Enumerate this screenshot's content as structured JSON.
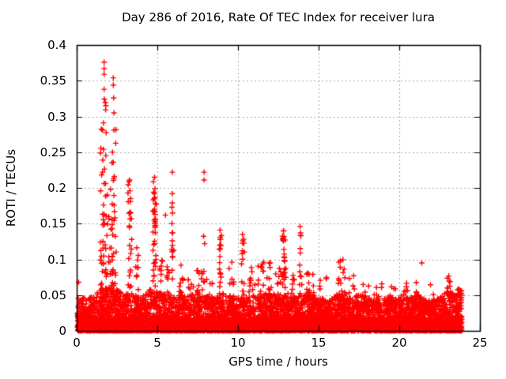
{
  "page": {
    "background": "#ffffff"
  },
  "chart_data": {
    "type": "scatter",
    "title": "Day 286 of 2016, Rate Of TEC Index for receiver lura",
    "xlabel": "GPS time / hours",
    "ylabel": "ROTI / TECUs",
    "xlim": [
      0,
      25
    ],
    "ylim": [
      0,
      0.4
    ],
    "xticks": [
      {
        "value": 0,
        "label": "0"
      },
      {
        "value": 5,
        "label": "5"
      },
      {
        "value": 10,
        "label": "10"
      },
      {
        "value": 15,
        "label": "15"
      },
      {
        "value": 20,
        "label": "20"
      },
      {
        "value": 25,
        "label": "25"
      }
    ],
    "yticks": [
      {
        "value": 0,
        "label": "0"
      },
      {
        "value": 0.05,
        "label": "0.05"
      },
      {
        "value": 0.1,
        "label": "0.1"
      },
      {
        "value": 0.15,
        "label": "0.15"
      },
      {
        "value": 0.2,
        "label": "0.2"
      },
      {
        "value": 0.25,
        "label": "0.25"
      },
      {
        "value": 0.3,
        "label": "0.3"
      },
      {
        "value": 0.35,
        "label": "0.35"
      },
      {
        "value": 0.4,
        "label": "0.4"
      }
    ],
    "grid": {
      "show": true,
      "color": "#a8a8a8",
      "dash": [
        2,
        3
      ]
    },
    "axis_color": "#000000",
    "text_color": "#000000",
    "legend": null,
    "marker": {
      "shape": "plus",
      "color": "#ff0000",
      "size": 7,
      "stroke_width": 1.4
    },
    "data_span_hours": [
      0.05,
      23.88
    ],
    "baseline_band": {
      "count": 5200,
      "strip_count": 2600,
      "strip_max": 0.018,
      "shape_power": 2.0,
      "envelope": [
        [
          0,
          0.045
        ],
        [
          0.5,
          0.052
        ],
        [
          1,
          0.05
        ],
        [
          1.5,
          0.06
        ],
        [
          2,
          0.062
        ],
        [
          2.5,
          0.058
        ],
        [
          3,
          0.06
        ],
        [
          3.5,
          0.05
        ],
        [
          4,
          0.048
        ],
        [
          4.5,
          0.058
        ],
        [
          5,
          0.055
        ],
        [
          5.5,
          0.052
        ],
        [
          6,
          0.05
        ],
        [
          6.5,
          0.056
        ],
        [
          7,
          0.046
        ],
        [
          7.5,
          0.054
        ],
        [
          8,
          0.05
        ],
        [
          8.5,
          0.047
        ],
        [
          9,
          0.055
        ],
        [
          9.5,
          0.045
        ],
        [
          10,
          0.05
        ],
        [
          10.5,
          0.046
        ],
        [
          11,
          0.05
        ],
        [
          11.5,
          0.05
        ],
        [
          12,
          0.055
        ],
        [
          12.5,
          0.05
        ],
        [
          13,
          0.056
        ],
        [
          13.5,
          0.046
        ],
        [
          14,
          0.05
        ],
        [
          14.5,
          0.056
        ],
        [
          15,
          0.046
        ],
        [
          15.5,
          0.042
        ],
        [
          16,
          0.05
        ],
        [
          16.5,
          0.055
        ],
        [
          17,
          0.046
        ],
        [
          17.5,
          0.05
        ],
        [
          18,
          0.05
        ],
        [
          18.5,
          0.046
        ],
        [
          19,
          0.05
        ],
        [
          19.5,
          0.046
        ],
        [
          20,
          0.05
        ],
        [
          20.5,
          0.046
        ],
        [
          21,
          0.05
        ],
        [
          21.5,
          0.046
        ],
        [
          22,
          0.042
        ],
        [
          22.5,
          0.046
        ],
        [
          23,
          0.06
        ],
        [
          23.5,
          0.05
        ],
        [
          23.88,
          0.058
        ]
      ]
    },
    "spike_clusters": [
      {
        "x": 1.65,
        "halfwidth": 0.18,
        "ymax": 0.34,
        "count": 38
      },
      {
        "x": 2.3,
        "halfwidth": 0.15,
        "ymax": 0.3,
        "count": 26
      },
      {
        "x": 1.95,
        "halfwidth": 0.4,
        "ymax": 0.17,
        "count": 40
      },
      {
        "x": 3.3,
        "halfwidth": 0.12,
        "ymax": 0.21,
        "count": 26
      },
      {
        "x": 3.75,
        "halfwidth": 0.1,
        "ymax": 0.12,
        "count": 12
      },
      {
        "x": 4.85,
        "halfwidth": 0.12,
        "ymax": 0.21,
        "count": 42
      },
      {
        "x": 5.25,
        "halfwidth": 0.12,
        "ymax": 0.1,
        "count": 12
      },
      {
        "x": 5.65,
        "halfwidth": 0.1,
        "ymax": 0.095,
        "count": 12
      },
      {
        "x": 5.95,
        "halfwidth": 0.07,
        "ymax": 0.19,
        "count": 14
      },
      {
        "x": 6.45,
        "halfwidth": 0.15,
        "ymax": 0.1,
        "count": 16
      },
      {
        "x": 7.05,
        "halfwidth": 0.2,
        "ymax": 0.075,
        "count": 12
      },
      {
        "x": 7.6,
        "halfwidth": 0.2,
        "ymax": 0.085,
        "count": 14
      },
      {
        "x": 7.9,
        "halfwidth": 0.05,
        "ymax": 0.15,
        "count": 6
      },
      {
        "x": 8.25,
        "halfwidth": 0.2,
        "ymax": 0.08,
        "count": 12
      },
      {
        "x": 8.9,
        "halfwidth": 0.08,
        "ymax": 0.14,
        "count": 16
      },
      {
        "x": 9.6,
        "halfwidth": 0.15,
        "ymax": 0.09,
        "count": 12
      },
      {
        "x": 10.3,
        "halfwidth": 0.1,
        "ymax": 0.135,
        "count": 18
      },
      {
        "x": 10.85,
        "halfwidth": 0.2,
        "ymax": 0.09,
        "count": 12
      },
      {
        "x": 11.45,
        "halfwidth": 0.2,
        "ymax": 0.095,
        "count": 14
      },
      {
        "x": 11.95,
        "halfwidth": 0.15,
        "ymax": 0.11,
        "count": 14
      },
      {
        "x": 12.5,
        "halfwidth": 0.2,
        "ymax": 0.09,
        "count": 14
      },
      {
        "x": 12.85,
        "halfwidth": 0.12,
        "ymax": 0.14,
        "count": 30
      },
      {
        "x": 13.35,
        "halfwidth": 0.15,
        "ymax": 0.085,
        "count": 10
      },
      {
        "x": 13.88,
        "halfwidth": 0.08,
        "ymax": 0.135,
        "count": 12
      },
      {
        "x": 14.5,
        "halfwidth": 0.25,
        "ymax": 0.085,
        "count": 18
      },
      {
        "x": 15.3,
        "halfwidth": 0.25,
        "ymax": 0.075,
        "count": 12
      },
      {
        "x": 16.4,
        "halfwidth": 0.25,
        "ymax": 0.1,
        "count": 16
      },
      {
        "x": 17.05,
        "halfwidth": 0.2,
        "ymax": 0.08,
        "count": 12
      },
      {
        "x": 17.9,
        "halfwidth": 0.3,
        "ymax": 0.07,
        "count": 12
      },
      {
        "x": 18.7,
        "halfwidth": 0.3,
        "ymax": 0.068,
        "count": 12
      },
      {
        "x": 19.6,
        "halfwidth": 0.3,
        "ymax": 0.065,
        "count": 10
      },
      {
        "x": 20.4,
        "halfwidth": 0.3,
        "ymax": 0.068,
        "count": 10
      },
      {
        "x": 21.1,
        "halfwidth": 0.2,
        "ymax": 0.07,
        "count": 10
      },
      {
        "x": 21.95,
        "halfwidth": 0.2,
        "ymax": 0.066,
        "count": 8
      },
      {
        "x": 23.1,
        "halfwidth": 0.15,
        "ymax": 0.078,
        "count": 14
      },
      {
        "x": 23.7,
        "halfwidth": 0.18,
        "ymax": 0.062,
        "count": 16
      }
    ],
    "outlier_points": [
      [
        0.12,
        0.068
      ],
      [
        1.7,
        0.376
      ],
      [
        1.7,
        0.367
      ],
      [
        1.7,
        0.359
      ],
      [
        1.7,
        0.338
      ],
      [
        1.66,
        0.291
      ],
      [
        1.66,
        0.254
      ],
      [
        1.62,
        0.239
      ],
      [
        1.6,
        0.222
      ],
      [
        1.7,
        0.206
      ],
      [
        1.9,
        0.19
      ],
      [
        2.27,
        0.354
      ],
      [
        2.27,
        0.344
      ],
      [
        2.29,
        0.326
      ],
      [
        2.31,
        0.305
      ],
      [
        2.31,
        0.281
      ],
      [
        2.27,
        0.236
      ],
      [
        2.33,
        0.216
      ],
      [
        2.1,
        0.198
      ],
      [
        3.28,
        0.211
      ],
      [
        3.3,
        0.196
      ],
      [
        3.33,
        0.181
      ],
      [
        3.3,
        0.166
      ],
      [
        4.83,
        0.215
      ],
      [
        4.85,
        0.199
      ],
      [
        4.83,
        0.192
      ],
      [
        4.8,
        0.185
      ],
      [
        4.87,
        0.178
      ],
      [
        4.83,
        0.17
      ],
      [
        4.85,
        0.163
      ],
      [
        4.81,
        0.155
      ],
      [
        4.85,
        0.147
      ],
      [
        5.5,
        0.162
      ],
      [
        5.93,
        0.222
      ],
      [
        5.93,
        0.192
      ],
      [
        5.93,
        0.179
      ],
      [
        5.95,
        0.137
      ],
      [
        5.93,
        0.126
      ],
      [
        5.95,
        0.104
      ],
      [
        7.9,
        0.222
      ],
      [
        7.9,
        0.211
      ],
      [
        8.89,
        0.141
      ],
      [
        8.91,
        0.131
      ],
      [
        8.89,
        0.128
      ],
      [
        8.87,
        0.12
      ],
      [
        8.9,
        0.115
      ],
      [
        8.88,
        0.104
      ],
      [
        9.62,
        0.096
      ],
      [
        10.28,
        0.135
      ],
      [
        10.3,
        0.126
      ],
      [
        10.27,
        0.112
      ],
      [
        11.6,
        0.096
      ],
      [
        12.83,
        0.14
      ],
      [
        12.85,
        0.132
      ],
      [
        12.8,
        0.127
      ],
      [
        13.85,
        0.146
      ],
      [
        13.88,
        0.137
      ],
      [
        13.9,
        0.133
      ],
      [
        13.86,
        0.109
      ],
      [
        16.35,
        0.098
      ],
      [
        21.4,
        0.095
      ]
    ]
  }
}
